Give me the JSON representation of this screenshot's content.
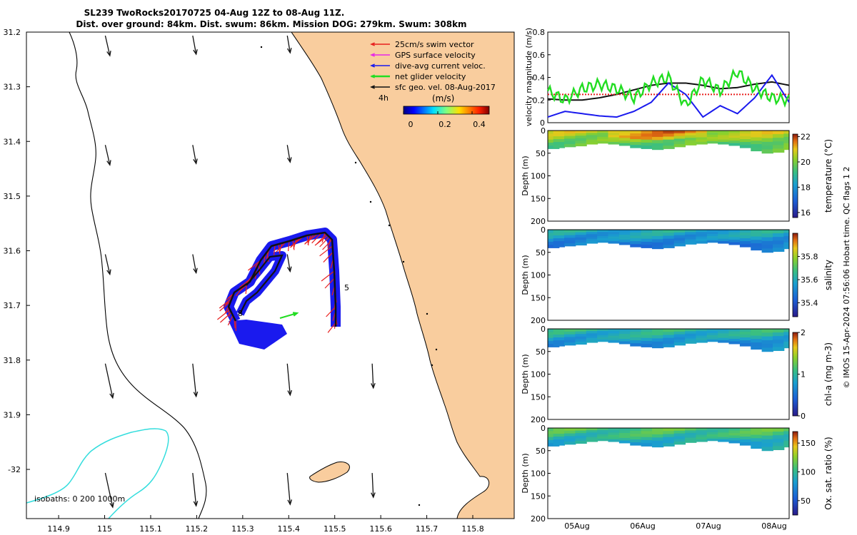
{
  "title_line1": "SL239 TwoRocks20170725 04-Aug 12Z to 08-Aug 11Z.",
  "title_line2": "Dist. over ground: 84km. Dist. swum: 86km. Mission DOG: 279km. Swum: 308km",
  "credit": "© IMOS 15-Apr-2024 07:56:06 Hobart time. QC flags 1  2",
  "colors": {
    "land": "#f9cd9e",
    "swim": "#e8201f",
    "gps": "#e826e8",
    "dive_avg": "#1a1aee",
    "net": "#22dd22",
    "sfc": "#111111",
    "isobath200": "#000000",
    "isobath1000": "#33dddd"
  },
  "map": {
    "xticks": [
      "114.9",
      "115",
      "115.1",
      "115.2",
      "115.3",
      "115.4",
      "115.5",
      "115.6",
      "115.7",
      "115.8"
    ],
    "yticks": [
      "31.2",
      "31.3",
      "31.4",
      "31.5",
      "31.6",
      "31.7",
      "31.8",
      "31.9",
      "-32"
    ],
    "xlim": [
      114.83,
      115.89
    ],
    "ylim": [
      31.2,
      32.09
    ],
    "legend": [
      {
        "key": "swim",
        "label": "25cm/s swim vector"
      },
      {
        "key": "gps",
        "label": "GPS surface velocity"
      },
      {
        "key": "dive_avg",
        "label": "dive-avg current veloc."
      },
      {
        "key": "net",
        "label": "net glider velocity"
      },
      {
        "key": "sfc",
        "label": "sfc geo. vel. 08-Aug-2017"
      }
    ],
    "time_marker": "4h",
    "track_labels": [
      "8",
      "5"
    ],
    "colorbar": {
      "label": "(m/s)",
      "ticks": [
        "0",
        "0.2",
        "0.4"
      ],
      "range": [
        0,
        0.5
      ]
    },
    "isobath_text": "isobaths: 0   200  1000m"
  },
  "chart_data": [
    {
      "type": "line",
      "ylabel": "velocity magnitude (m/s)",
      "ylim": [
        0,
        0.8
      ],
      "yticks": [
        "0",
        "0.2",
        "0.4",
        "0.6",
        "0.8"
      ],
      "xticks": [
        "05Aug",
        "06Aug",
        "07Aug",
        "08Aug"
      ],
      "series": [
        {
          "key": "sfc",
          "values": [
            0.21,
            0.2,
            0.2,
            0.22,
            0.25,
            0.29,
            0.33,
            0.35,
            0.35,
            0.33,
            0.3,
            0.31,
            0.34,
            0.36,
            0.33
          ]
        },
        {
          "key": "swim",
          "values": [
            0.25,
            0.25,
            0.25,
            0.25,
            0.25,
            0.25,
            0.25,
            0.25,
            0.25,
            0.25,
            0.25,
            0.25,
            0.25,
            0.25,
            0.25
          ]
        },
        {
          "key": "dive_avg",
          "values": [
            0.05,
            0.1,
            0.08,
            0.06,
            0.05,
            0.1,
            0.18,
            0.35,
            0.25,
            0.05,
            0.15,
            0.08,
            0.22,
            0.42,
            0.18
          ]
        },
        {
          "key": "net",
          "values": [
            0.28,
            0.2,
            0.3,
            0.34,
            0.3,
            0.22,
            0.35,
            0.4,
            0.15,
            0.38,
            0.28,
            0.45,
            0.3,
            0.22,
            0.2
          ]
        }
      ]
    },
    {
      "type": "heatmap",
      "ylabel": "Depth (m)",
      "cblabel": "temperature (°C)",
      "ylim": [
        200,
        0
      ],
      "yticks": [
        "0",
        "50",
        "100",
        "150",
        "200"
      ],
      "cbticks": [
        "16",
        "18",
        "20",
        "22"
      ],
      "crange": [
        15.6,
        22.2
      ],
      "base_value": 20.6,
      "profile_depth": [
        40,
        38,
        36,
        34,
        30,
        28,
        30,
        33,
        38,
        40,
        42,
        40,
        36,
        32,
        30,
        28,
        30,
        33,
        38,
        45,
        50,
        48,
        42
      ]
    },
    {
      "type": "heatmap",
      "ylabel": "Depth (m)",
      "cblabel": "salinity",
      "ylim": [
        200,
        0
      ],
      "yticks": [
        "0",
        "50",
        "100",
        "150",
        "200"
      ],
      "cbticks": [
        "35.4",
        "35.6",
        "35.8"
      ],
      "crange": [
        35.28,
        36.0
      ],
      "base_value": 35.6,
      "profile_depth": [
        40,
        38,
        36,
        34,
        30,
        28,
        30,
        33,
        38,
        40,
        42,
        40,
        36,
        32,
        30,
        28,
        30,
        33,
        38,
        45,
        50,
        48,
        42
      ]
    },
    {
      "type": "heatmap",
      "ylabel": "Depth (m)",
      "cblabel": "chl-a (mg m-3)",
      "ylim": [
        200,
        0
      ],
      "yticks": [
        "0",
        "50",
        "100",
        "150",
        "200"
      ],
      "cbticks": [
        "0",
        "1",
        "2"
      ],
      "crange": [
        0,
        2
      ],
      "base_value": 1.0,
      "profile_depth": [
        40,
        38,
        36,
        34,
        30,
        28,
        30,
        33,
        38,
        40,
        42,
        40,
        36,
        32,
        30,
        28,
        30,
        33,
        38,
        45,
        50,
        48,
        42
      ]
    },
    {
      "type": "heatmap",
      "ylabel": "Depth (m)",
      "cblabel": "Ox. sat. ratio (%)",
      "ylim": [
        200,
        0
      ],
      "yticks": [
        "0",
        "50",
        "100",
        "150",
        "200"
      ],
      "cbticks": [
        "50",
        "100",
        "150"
      ],
      "crange": [
        25,
        170
      ],
      "base_value": 110,
      "profile_depth": [
        40,
        38,
        36,
        34,
        30,
        28,
        30,
        33,
        38,
        40,
        42,
        40,
        36,
        32,
        30,
        28,
        30,
        33,
        38,
        45,
        50,
        48,
        42
      ]
    }
  ]
}
